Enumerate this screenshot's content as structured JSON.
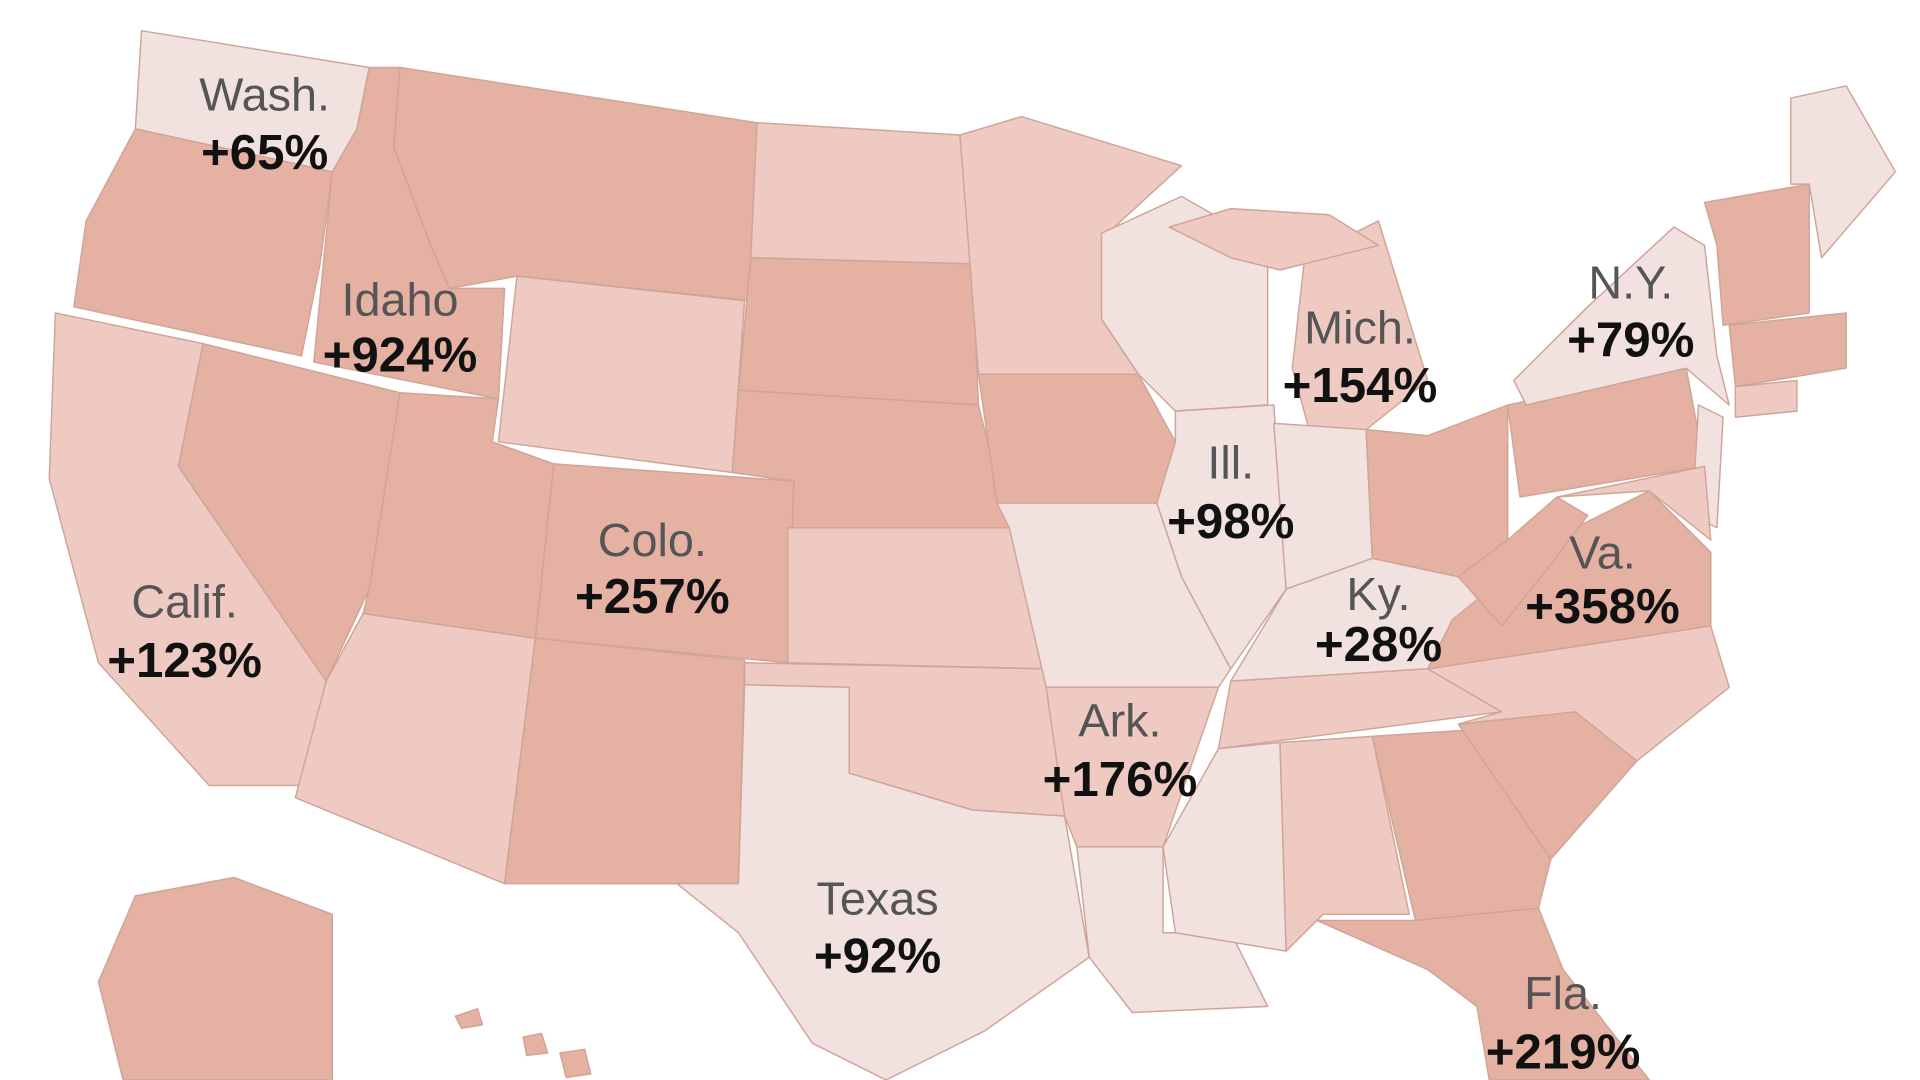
{
  "labels": [
    {
      "name": "Wash.",
      "change": "+65%"
    },
    {
      "name": "Idaho",
      "change": "+924%"
    },
    {
      "name": "Mich.",
      "change": "+154%"
    },
    {
      "name": "N.Y.",
      "change": "+79%"
    },
    {
      "name": "Ill.",
      "change": "+98%"
    },
    {
      "name": "Colo.",
      "change": "+257%"
    },
    {
      "name": "Calif.",
      "change": "+123%"
    },
    {
      "name": "Ky.",
      "change": "+28%"
    },
    {
      "name": "Va.",
      "change": "+358%"
    },
    {
      "name": "Ark.",
      "change": "+176%"
    },
    {
      "name": "Texas",
      "change": "+92%"
    },
    {
      "name": "Fla.",
      "change": "+219%"
    }
  ]
}
